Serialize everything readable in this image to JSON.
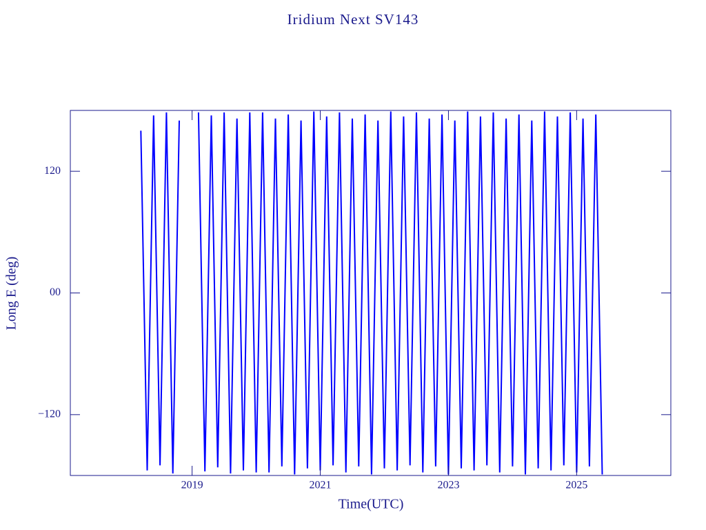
{
  "chart_data": {
    "type": "line",
    "title": "Iridium Next SV143",
    "xlabel": "Time(UTC)",
    "ylabel": "Long E (deg)",
    "x": [
      2018.2,
      2018.3,
      2018.4,
      2018.5,
      2018.6,
      2018.7,
      2018.8,
      2018.9,
      2019.0,
      2019.1,
      2019.2,
      2019.3,
      2019.4,
      2019.5,
      2019.6,
      2019.7,
      2019.8,
      2019.9,
      2020.0,
      2020.1,
      2020.2,
      2020.3,
      2020.4,
      2020.5,
      2020.6,
      2020.7,
      2020.8,
      2020.9,
      2021.0,
      2021.1,
      2021.2,
      2021.3,
      2021.4,
      2021.5,
      2021.6,
      2021.7,
      2021.8,
      2021.9,
      2022.0,
      2022.1,
      2022.2,
      2022.3,
      2022.4,
      2022.5,
      2022.6,
      2022.7,
      2022.8,
      2022.9,
      2023.0,
      2023.1,
      2023.2,
      2023.3,
      2023.4,
      2023.5,
      2023.6,
      2023.7,
      2023.8,
      2023.9,
      2024.0,
      2024.1,
      2024.2,
      2024.3,
      2024.4,
      2024.5,
      2024.6,
      2024.7,
      2024.8,
      2024.9,
      2025.0,
      2025.1,
      2025.2,
      2025.3,
      2025.4
    ],
    "series": [
      {
        "name": "SV143",
        "color": "#0000ff",
        "values": [
          160,
          -175,
          175,
          -170,
          178,
          -178,
          170,
          null,
          null,
          178,
          -176,
          175,
          -172,
          178,
          -178,
          172,
          -175,
          178,
          -177,
          178,
          -177,
          172,
          -171,
          176,
          -179,
          170,
          -173,
          179,
          -175,
          174,
          -170,
          178,
          -177,
          172,
          -171,
          176,
          -179,
          170,
          -173,
          179,
          -175,
          174,
          -170,
          178,
          -177,
          172,
          -171,
          176,
          -179,
          170,
          -173,
          179,
          -175,
          174,
          -170,
          178,
          -177,
          172,
          -171,
          176,
          -179,
          170,
          -173,
          179,
          -175,
          174,
          -170,
          178,
          -177,
          172,
          -171,
          176,
          -179
        ]
      }
    ],
    "xlim": [
      2017.1,
      2026.47
    ],
    "xticks": [
      2019,
      2021,
      2023,
      2025
    ],
    "ylim": [
      -180,
      180
    ],
    "yticks": [
      {
        "value": -120,
        "label": "−120"
      },
      {
        "value": 0,
        "label": "00"
      },
      120
    ],
    "axis_color": "#1a1a8c"
  }
}
